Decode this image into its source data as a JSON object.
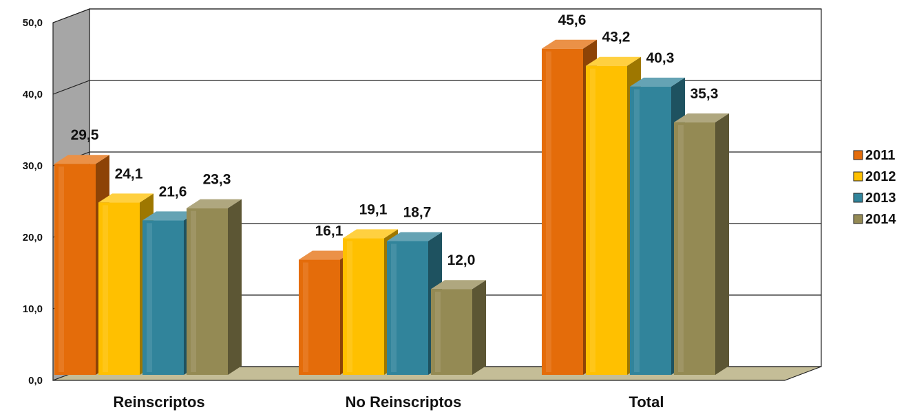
{
  "chart_data": {
    "type": "bar",
    "categories": [
      "Reinscriptos",
      "No Reinscriptos",
      "Total"
    ],
    "series": [
      {
        "name": "2011",
        "values": [
          29.5,
          16.1,
          45.6
        ],
        "labels": [
          "29,5",
          "16,1",
          "45,6"
        ],
        "color": "#E46C0A"
      },
      {
        "name": "2012",
        "values": [
          24.1,
          19.1,
          43.2
        ],
        "labels": [
          "24,1",
          "19,1",
          "43,2"
        ],
        "color": "#FFC000"
      },
      {
        "name": "2013",
        "values": [
          21.6,
          18.7,
          40.3
        ],
        "labels": [
          "21,6",
          "18,7",
          "40,3"
        ],
        "color": "#31849B"
      },
      {
        "name": "2014",
        "values": [
          23.3,
          12.0,
          35.3
        ],
        "labels": [
          "23,3",
          "12,0",
          "35,3"
        ],
        "color": "#948A54"
      }
    ],
    "y_ticks": [
      "0,0",
      "10,0",
      "20,0",
      "30,0",
      "40,0",
      "50,0"
    ],
    "ylim": [
      0,
      50
    ],
    "grid": true,
    "legend_position": "right",
    "title": "",
    "xlabel": "",
    "ylabel": ""
  }
}
